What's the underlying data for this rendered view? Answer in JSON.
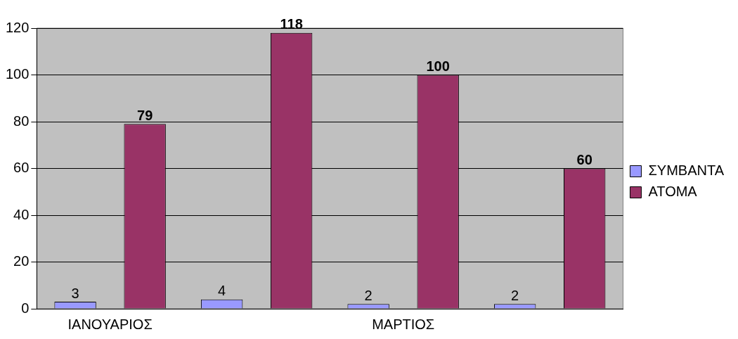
{
  "chart_data": {
    "type": "bar",
    "categories": [
      "ΙΑΝΟΥΑΡΙΟΣ",
      null,
      "ΜΑΡΤΙΟΣ",
      null
    ],
    "series": [
      {
        "name": "ΣΥΜΒΑΝΤΑ",
        "color": "#9999ff",
        "values": [
          3,
          4,
          2,
          2
        ]
      },
      {
        "name": "ΑΤΟΜΑ",
        "color": "#993366",
        "values": [
          79,
          118,
          100,
          60
        ]
      }
    ],
    "ylim": [
      0,
      120
    ],
    "yticks": [
      0,
      20,
      40,
      60,
      80,
      100,
      120
    ],
    "grid": "y",
    "legend": "right",
    "data_labels": true
  }
}
